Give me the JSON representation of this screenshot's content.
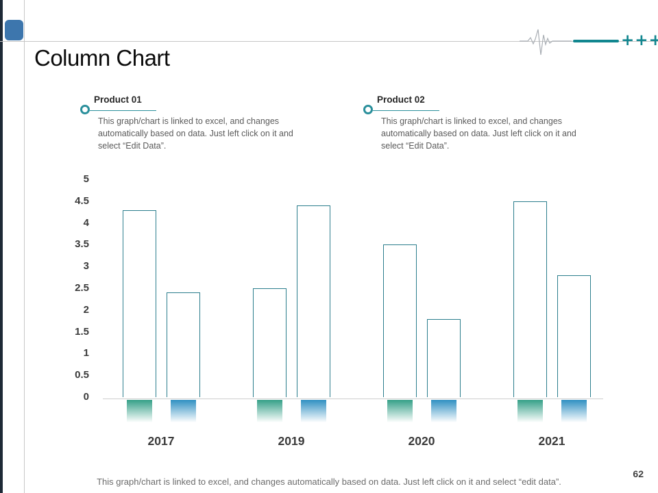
{
  "slide": {
    "title": "Column Chart",
    "page_number": "62",
    "footer_note": "This graph/chart is linked to excel, and changes automatically based on data. Just left click on it and select “edit data”.",
    "accent_plus_marks": "++++"
  },
  "legend": {
    "items": [
      {
        "title": "Product 01",
        "description": "This graph/chart is linked to excel, and changes automatically based on data. Just left click on it and select “Edit Data”."
      },
      {
        "title": "Product 02",
        "description": "This graph/chart is linked to excel, and changes automatically based on data. Just left click on it and select “Edit Data”."
      }
    ]
  },
  "chart_data": {
    "type": "bar",
    "title": "",
    "categories": [
      "2017",
      "2019",
      "2020",
      "2021"
    ],
    "series": [
      {
        "name": "Product 01",
        "values": [
          4.3,
          2.5,
          3.5,
          4.5
        ],
        "base_color": "#35a088"
      },
      {
        "name": "Product 02",
        "values": [
          2.4,
          4.4,
          1.8,
          2.8
        ],
        "base_color": "#3090c2"
      }
    ],
    "ylim": [
      0,
      5
    ],
    "ytick_step": 0.5,
    "yticks": [
      "5",
      "4.5",
      "4",
      "3.5",
      "3",
      "2.5",
      "2",
      "1.5",
      "1",
      "0.5",
      "0"
    ],
    "bar_fill": "#ffffff",
    "bar_outline": "#2a7d8c",
    "grid": false,
    "legend_position": "top"
  },
  "colors": {
    "accent_teal": "#11868f",
    "legend_ring": "#2a8f9b",
    "title_square_blue": "#3d76ad",
    "left_edge_bar": "#1d2936"
  }
}
